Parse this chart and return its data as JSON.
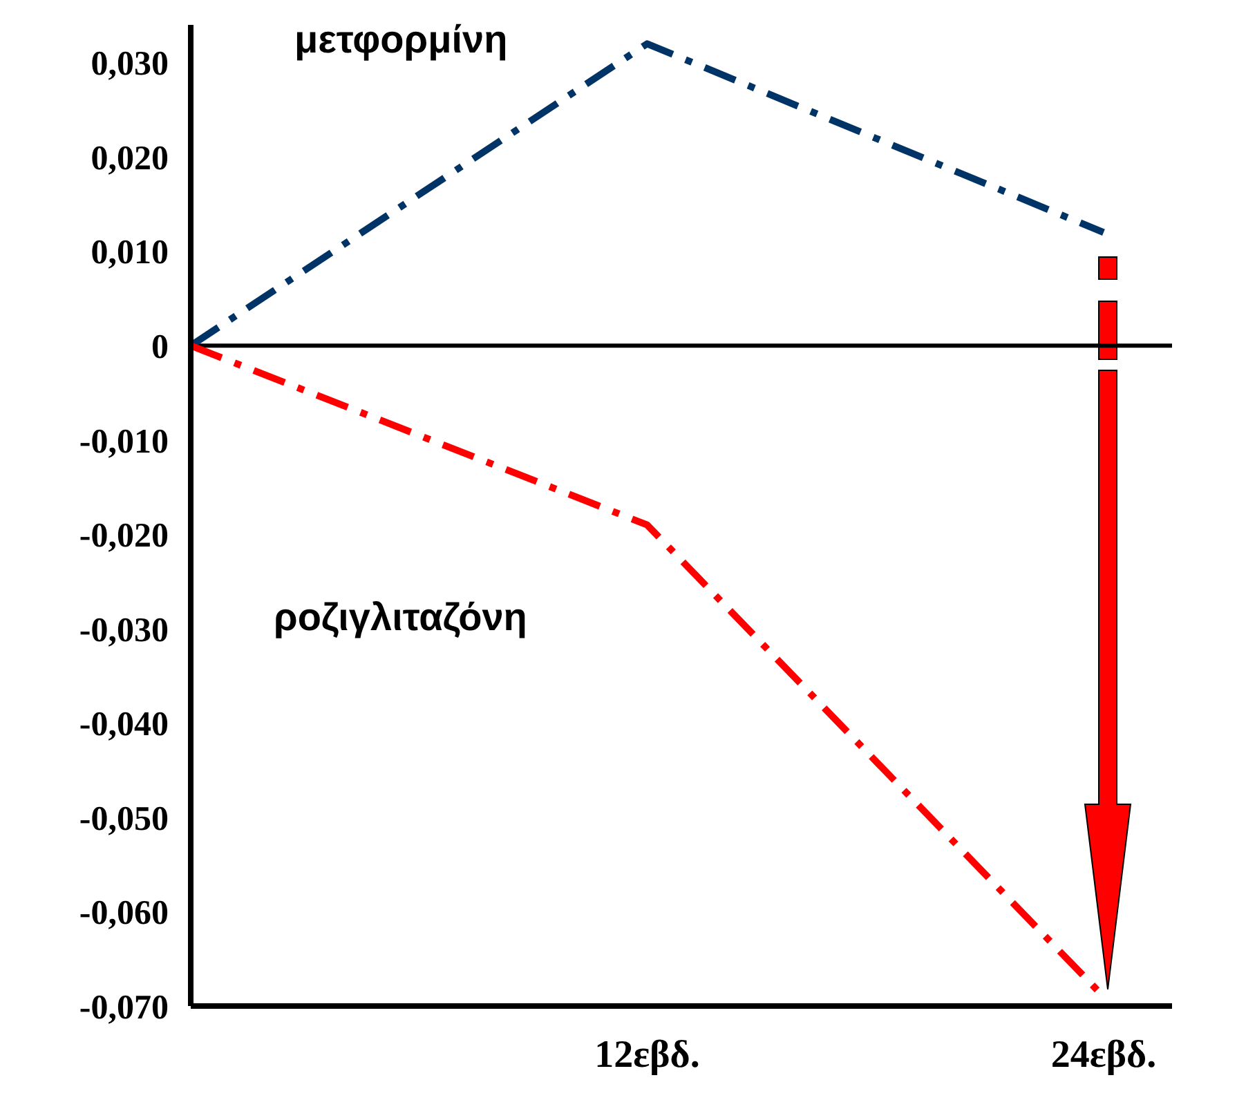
{
  "chart_data": {
    "type": "line",
    "categories": [
      null,
      "12εβδ.",
      "24εβδ."
    ],
    "series": [
      {
        "name": "μετφορμίνη",
        "color": "#003366",
        "values": [
          0,
          0.032,
          0.012
        ]
      },
      {
        "name": "ροζιγλιταζόνη",
        "color": "#ff0000",
        "values": [
          0,
          -0.019,
          -0.069
        ]
      }
    ],
    "ylim": [
      -0.07,
      0.034
    ],
    "yticks": [
      {
        "value": 0.03,
        "label": "0,030"
      },
      {
        "value": 0.02,
        "label": "0,020"
      },
      {
        "value": 0.01,
        "label": "0,010"
      },
      {
        "value": 0,
        "label": "0"
      },
      {
        "value": -0.01,
        "label": "-0,010"
      },
      {
        "value": -0.02,
        "label": "-0,020"
      },
      {
        "value": -0.03,
        "label": "-0,030"
      },
      {
        "value": -0.04,
        "label": "-0,040"
      },
      {
        "value": -0.05,
        "label": "-0,050"
      },
      {
        "value": -0.06,
        "label": "-0,060"
      },
      {
        "value": -0.07,
        "label": "-0,070"
      }
    ],
    "ref_lines": [
      {
        "axis": "y",
        "value": 0,
        "color": "#000000"
      }
    ],
    "grid": false,
    "legend": false,
    "marker": "none",
    "line_style": "dashed"
  }
}
